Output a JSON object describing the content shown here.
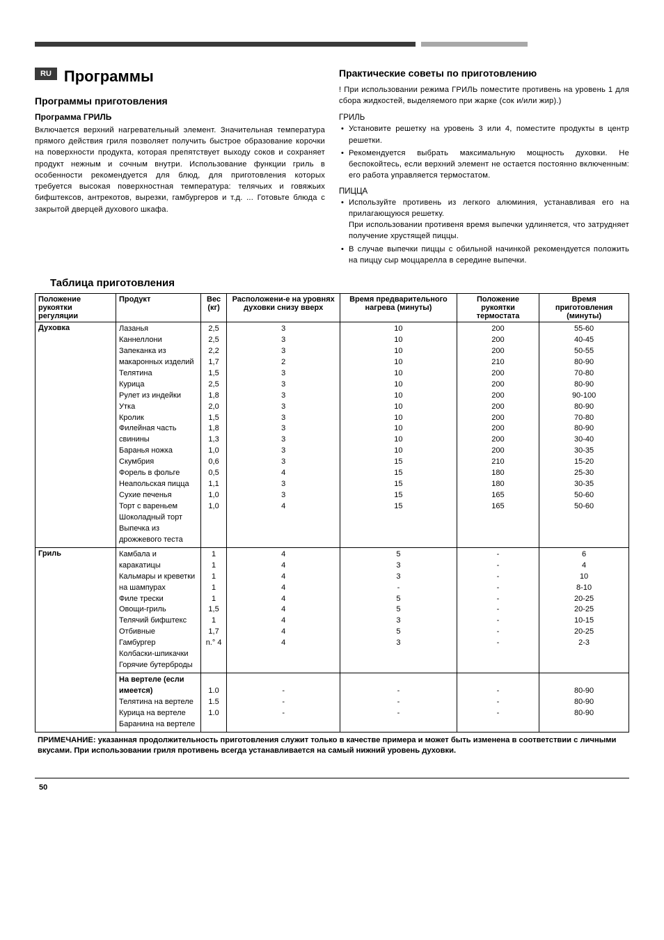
{
  "langTag": "RU",
  "pageNumber": "50",
  "left": {
    "title": "Программы",
    "subtitle": "Программы приготовления",
    "programHeading": "Программа ГРИЛЬ",
    "programBody": "Включается верхний нагревательный элемент. Значительная температура прямого действия гриля позволяет получить быстрое образование корочки на поверхности продукта, которая препятствует выходу соков и сохраняет продукт нежным и сочным внутри. Использование функции гриль в особенности рекомендуется для блюд, для приготовления которых требуется высокая поверхностная температура: телячьих и говяжьих бифштексов, антрекотов, вырезки, гамбургеров и т.д. ... Готовьте блюда с закрытой дверцей духового шкафа."
  },
  "right": {
    "adviceTitle": "Практические советы по приготовлению",
    "adviceWarn": "! При использовании режима ГРИЛЬ поместите противень на уровень 1 для сбора жидкостей, выделяемого при жарке (сок и/или жир).)",
    "grillLabel": "ГРИЛЬ",
    "grillBullets": [
      "Установите решетку на уровень 3 или 4, поместите продукты в центр решетки.",
      "Рекомендуется выбрать максимальную мощность духовки. Не беспокойтесь, если верхний элемент не остается постоянно включенным: его работа управляется термостатом."
    ],
    "pizzaLabel": "ПИЦЦА",
    "pizzaBullets": [
      "Используйте противень из легкого алюминия, устанавливая его на прилагающуюся решетку.\nПри использовании противеня время выпечки удлиняется, что затрудняет получение хрустящей пиццы.",
      "В случае выпечки пиццы с обильной начинкой рекомендуется положить на пиццу сыр моццарелла в середине выпечки."
    ]
  },
  "tableTitle": "Таблица приготовления",
  "table": {
    "headers": [
      "Положение рукоятки регуляции",
      "Продукт",
      "Вес (кг)",
      "Расположени-е на уровнях духовки снизу вверх",
      "Время предварительного нагрева (минуты)",
      "Положение рукоятки термостата",
      "Время приготовления (минуты)"
    ],
    "groups": [
      {
        "mode": "Духовка",
        "rows": [
          [
            "Лазанья",
            "2,5",
            "3",
            "10",
            "200",
            "55-60"
          ],
          [
            "Каннеллони",
            "2,5",
            "3",
            "10",
            "200",
            "40-45"
          ],
          [
            "Запеканка из макаронных изделий",
            "2,2",
            "3",
            "10",
            "200",
            "50-55"
          ],
          [
            "Телятина",
            "1,7",
            "2",
            "10",
            "210",
            "80-90"
          ],
          [
            "Курица",
            "1,5",
            "3",
            "10",
            "200",
            "70-80"
          ],
          [
            "Рулет из индейки",
            "2,5",
            "3",
            "10",
            "200",
            "80-90"
          ],
          [
            "Утка",
            "1,8",
            "3",
            "10",
            "200",
            "90-100"
          ],
          [
            "Кролик",
            "2,0",
            "3",
            "10",
            "200",
            "80-90"
          ],
          [
            "Филейная часть свинины",
            "1,5",
            "3",
            "10",
            "200",
            "70-80"
          ],
          [
            "Баранья ножка",
            "1,8",
            "3",
            "10",
            "200",
            "80-90"
          ],
          [
            "Скумбрия",
            "1,3",
            "3",
            "10",
            "200",
            "30-40"
          ],
          [
            "Форель в фольге",
            "1,0",
            "3",
            "10",
            "200",
            "30-35"
          ],
          [
            "Неапольская пицца",
            "0,6",
            "3",
            "15",
            "210",
            "15-20"
          ],
          [
            "Сухие печенья",
            "0,5",
            "4",
            "15",
            "180",
            "25-30"
          ],
          [
            "Торт с вареньем",
            "1,1",
            "3",
            "15",
            "180",
            "30-35"
          ],
          [
            "Шоколадный торт",
            "1,0",
            "3",
            "15",
            "165",
            "50-60"
          ],
          [
            "Выпечка из дрожжевого теста",
            "1,0",
            "4",
            "15",
            "165",
            "50-60"
          ]
        ]
      },
      {
        "mode": "Гриль",
        "rows": [
          [
            "Камбала и каракатицы",
            "1",
            "4",
            "5",
            "-",
            "6"
          ],
          [
            "Кальмары и креветки на шампурах",
            "1",
            "4",
            "3",
            "-",
            "4"
          ],
          [
            "Филе трески",
            "1",
            "4",
            "3",
            "-",
            "10"
          ],
          [
            "Овощи-гриль",
            "1",
            "4",
            "-",
            "-",
            "8-10"
          ],
          [
            "Телячий бифштекс",
            "1",
            "4",
            "5",
            "-",
            "20-25"
          ],
          [
            "Отбивные",
            "1,5",
            "4",
            "5",
            "-",
            "20-25"
          ],
          [
            "Гамбургер",
            "1",
            "4",
            "3",
            "-",
            "10-15"
          ],
          [
            "Колбаски-шпикачки",
            "1,7",
            "4",
            "5",
            "-",
            "20-25"
          ],
          [
            "Горячие бутерброды",
            "n.° 4",
            "4",
            "3",
            "-",
            "2-3"
          ]
        ]
      },
      {
        "mode": "",
        "subheading": "На вертеле (если имеется)",
        "rows": [
          [
            "Телятина на вертеле",
            "1.0",
            "-",
            "-",
            "-",
            "80-90"
          ],
          [
            "Курица на вертеле",
            "1.5",
            "-",
            "-",
            "-",
            "80-90"
          ],
          [
            "Баранина на вертеле",
            "1.0",
            "-",
            "-",
            "-",
            "80-90"
          ]
        ]
      }
    ]
  },
  "note": "ПРИМЕЧАНИЕ: указанная продолжительность приготовления служит только в качестве примера и может быть изменена в соответствии с личными вкусами.  При использовании гриля противень всегда устанавливается на самый нижний уровень духовки."
}
